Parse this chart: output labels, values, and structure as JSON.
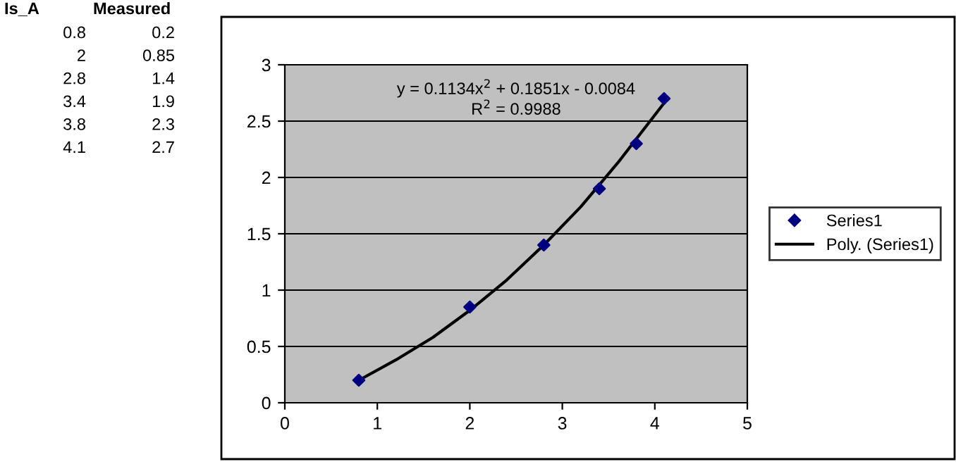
{
  "chart_data": [
    {
      "type": "other",
      "annotations": [
        "Is_A",
        "Measured",
        "0.8",
        "0.2",
        "2",
        "0.85",
        "2.8",
        "1.4",
        "3.4",
        "1.9",
        "3.8",
        "2.3",
        "4.1",
        "2.7"
      ]
    },
    {
      "type": "scatter",
      "x": [
        0.8,
        2,
        2.8,
        3.4,
        3.8,
        4.1
      ],
      "series": [
        {
          "name": "Series1",
          "type": "scatter",
          "color": "#000080",
          "marker": "diamond",
          "values": [
            0.2,
            0.85,
            1.4,
            1.9,
            2.3,
            2.7
          ]
        },
        {
          "name": "Poly. (Series1)",
          "type": "line",
          "color": "#000000",
          "marker": "none",
          "line_style": "solid",
          "x": [
            0.8,
            1.2,
            1.6,
            2.0,
            2.4,
            2.8,
            3.2,
            3.6,
            4.1
          ],
          "values": [
            0.2,
            0.38,
            0.58,
            0.82,
            1.09,
            1.4,
            1.74,
            2.13,
            2.66
          ]
        }
      ],
      "annotations": [
        "y = 0.1134x$^{2}$ + 0.1851x - 0.0084",
        "R$^{2}$ = 0.9988"
      ],
      "xlim": [
        0,
        5
      ],
      "xticks": [
        0,
        1,
        2,
        3,
        4,
        5
      ],
      "ylim": [
        0,
        3
      ],
      "yticks": [
        0,
        0.5,
        1,
        1.5,
        2,
        2.5,
        3
      ],
      "grid": "y",
      "legend": "right"
    }
  ]
}
